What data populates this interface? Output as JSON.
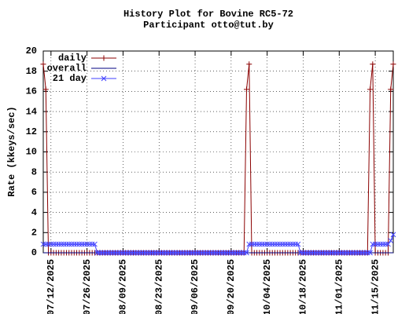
{
  "chart_data": {
    "type": "line",
    "title": "History Plot for Bovine RC5-72",
    "subtitle": "Participant otto@tut.by",
    "y_label": "Rate (kkeys/sec)",
    "x": [
      "2025-07-09",
      "2025-07-10",
      "2025-07-11",
      "2025-07-12",
      "2025-07-13",
      "2025-07-14",
      "2025-07-15",
      "2025-07-16",
      "2025-07-17",
      "2025-07-18",
      "2025-07-19",
      "2025-07-20",
      "2025-07-21",
      "2025-07-22",
      "2025-07-23",
      "2025-07-24",
      "2025-07-25",
      "2025-07-26",
      "2025-07-27",
      "2025-07-28",
      "2025-07-29",
      "2025-07-30",
      "2025-07-31",
      "2025-08-01",
      "2025-08-02",
      "2025-08-03",
      "2025-08-04",
      "2025-08-05",
      "2025-08-06",
      "2025-08-07",
      "2025-08-08",
      "2025-08-09",
      "2025-08-10",
      "2025-08-11",
      "2025-08-12",
      "2025-08-13",
      "2025-08-14",
      "2025-08-15",
      "2025-08-16",
      "2025-08-17",
      "2025-08-18",
      "2025-08-19",
      "2025-08-20",
      "2025-08-21",
      "2025-08-22",
      "2025-08-23",
      "2025-08-24",
      "2025-08-25",
      "2025-08-26",
      "2025-08-27",
      "2025-08-28",
      "2025-08-29",
      "2025-08-30",
      "2025-08-31",
      "2025-09-01",
      "2025-09-02",
      "2025-09-03",
      "2025-09-04",
      "2025-09-05",
      "2025-09-06",
      "2025-09-07",
      "2025-09-08",
      "2025-09-09",
      "2025-09-10",
      "2025-09-11",
      "2025-09-12",
      "2025-09-13",
      "2025-09-14",
      "2025-09-15",
      "2025-09-16",
      "2025-09-17",
      "2025-09-18",
      "2025-09-19",
      "2025-09-20",
      "2025-09-21",
      "2025-09-22",
      "2025-09-23",
      "2025-09-24",
      "2025-09-25",
      "2025-09-26",
      "2025-09-27",
      "2025-09-28",
      "2025-09-29",
      "2025-09-30",
      "2025-10-01",
      "2025-10-02",
      "2025-10-03",
      "2025-10-04",
      "2025-10-05",
      "2025-10-06",
      "2025-10-07",
      "2025-10-08",
      "2025-10-09",
      "2025-10-10",
      "2025-10-11",
      "2025-10-12",
      "2025-10-13",
      "2025-10-14",
      "2025-10-15",
      "2025-10-16",
      "2025-10-17",
      "2025-10-18",
      "2025-10-19",
      "2025-10-20",
      "2025-10-21",
      "2025-10-22",
      "2025-10-23",
      "2025-10-24",
      "2025-10-25",
      "2025-10-26",
      "2025-10-27",
      "2025-10-28",
      "2025-10-29",
      "2025-10-30",
      "2025-10-31",
      "2025-11-01",
      "2025-11-02",
      "2025-11-03",
      "2025-11-04",
      "2025-11-05",
      "2025-11-06",
      "2025-11-07",
      "2025-11-08",
      "2025-11-09",
      "2025-11-10",
      "2025-11-11",
      "2025-11-12",
      "2025-11-13",
      "2025-11-14",
      "2025-11-15",
      "2025-11-16",
      "2025-11-17",
      "2025-11-18",
      "2025-11-19",
      "2025-11-20",
      "2025-11-21",
      "2025-11-22"
    ],
    "series": [
      {
        "name": "daily",
        "color": "#8b0000",
        "marker": "plus",
        "values": [
          18.7,
          16.2,
          0,
          0,
          0,
          0,
          0,
          0,
          0,
          0,
          0,
          0,
          0,
          0,
          0,
          0,
          0,
          0,
          0,
          0,
          0,
          0,
          0,
          0,
          0,
          0,
          0,
          0,
          0,
          0,
          0,
          0,
          0,
          0,
          0,
          0,
          0,
          0,
          0,
          0,
          0,
          0,
          0,
          0,
          0,
          0,
          0,
          0,
          0,
          0,
          0,
          0,
          0,
          0,
          0,
          0,
          0,
          0,
          0,
          0,
          0,
          0,
          0,
          0,
          0,
          0,
          0,
          0,
          0,
          0,
          0,
          0,
          0,
          0,
          0,
          0,
          0,
          0,
          0,
          16.2,
          18.7,
          0,
          0,
          0,
          0,
          0,
          0,
          0,
          0,
          0,
          0,
          0,
          0,
          0,
          0,
          0,
          0,
          0,
          0,
          0,
          0,
          0,
          0,
          0,
          0,
          0,
          0,
          0,
          0,
          0,
          0,
          0,
          0,
          0,
          0,
          0,
          0,
          0,
          0,
          0,
          0,
          0,
          0,
          0,
          0,
          0,
          0,
          16.2,
          18.7,
          0,
          0,
          0,
          0,
          0,
          0,
          16.2,
          18.7
        ]
      },
      {
        "name": "overall",
        "color": "#000080",
        "marker": "none",
        "values": [
          0,
          0,
          0,
          0,
          0,
          0,
          0,
          0,
          0,
          0,
          0,
          0,
          0,
          0,
          0,
          0,
          0,
          0,
          0,
          0,
          0,
          0,
          0,
          0,
          0,
          0,
          0,
          0,
          0,
          0,
          0,
          0,
          0,
          0,
          0,
          0,
          0,
          0,
          0,
          0,
          0,
          0,
          0,
          0,
          0,
          0,
          0,
          0,
          0,
          0,
          0,
          0,
          0,
          0,
          0,
          0,
          0,
          0,
          0,
          0,
          0,
          0,
          0,
          0,
          0,
          0,
          0,
          0,
          0,
          0,
          0,
          0,
          0,
          0,
          0,
          0,
          0,
          0,
          0,
          0,
          0,
          0,
          0,
          0,
          0,
          0,
          0,
          0,
          0,
          0,
          0,
          0,
          0,
          0,
          0,
          0,
          0,
          0,
          0,
          0,
          0,
          0,
          0,
          0,
          0,
          0,
          0,
          0,
          0,
          0,
          0,
          0,
          0,
          0,
          0,
          0,
          0,
          0,
          0,
          0,
          0,
          0,
          0,
          0,
          0,
          0,
          0,
          0,
          0,
          0,
          0,
          0,
          0,
          0,
          0,
          0,
          0
        ]
      },
      {
        "name": "21 day",
        "color": "#4040ff",
        "marker": "cross",
        "values": [
          0.85,
          0.85,
          0.85,
          0.85,
          0.85,
          0.85,
          0.85,
          0.85,
          0.85,
          0.85,
          0.85,
          0.85,
          0.85,
          0.85,
          0.85,
          0.85,
          0.85,
          0.85,
          0.85,
          0.85,
          0.85,
          0,
          0,
          0,
          0,
          0,
          0,
          0,
          0,
          0,
          0,
          0,
          0,
          0,
          0,
          0,
          0,
          0,
          0,
          0,
          0,
          0,
          0,
          0,
          0,
          0,
          0,
          0,
          0,
          0,
          0,
          0,
          0,
          0,
          0,
          0,
          0,
          0,
          0,
          0,
          0,
          0,
          0,
          0,
          0,
          0,
          0,
          0,
          0,
          0,
          0,
          0,
          0,
          0,
          0,
          0,
          0,
          0,
          0,
          0,
          0.85,
          0.85,
          0.85,
          0.85,
          0.85,
          0.85,
          0.85,
          0.85,
          0.85,
          0.85,
          0.85,
          0.85,
          0.85,
          0.85,
          0.85,
          0.85,
          0.85,
          0.85,
          0.85,
          0.85,
          0,
          0,
          0,
          0,
          0,
          0,
          0,
          0,
          0,
          0,
          0,
          0,
          0,
          0,
          0,
          0,
          0,
          0,
          0,
          0,
          0,
          0,
          0,
          0,
          0,
          0,
          0,
          0,
          0.85,
          0.85,
          0.85,
          0.85,
          0.85,
          0.85,
          0.85,
          1.2,
          1.8
        ]
      }
    ],
    "xlim": [
      "2025-07-09",
      "2025-11-22"
    ],
    "xticks": [
      {
        "value": "2025-07-12",
        "label": "07/12/2025"
      },
      {
        "value": "2025-07-26",
        "label": "07/26/2025"
      },
      {
        "value": "2025-08-09",
        "label": "08/09/2025"
      },
      {
        "value": "2025-08-23",
        "label": "08/23/2025"
      },
      {
        "value": "2025-09-06",
        "label": "09/06/2025"
      },
      {
        "value": "2025-09-20",
        "label": "09/20/2025"
      },
      {
        "value": "2025-10-04",
        "label": "10/04/2025"
      },
      {
        "value": "2025-10-18",
        "label": "10/18/2025"
      },
      {
        "value": "2025-11-01",
        "label": "11/01/2025"
      },
      {
        "value": "2025-11-15",
        "label": "11/15/2025"
      }
    ],
    "ylim": [
      0,
      20
    ],
    "yticks": [
      0,
      2,
      4,
      6,
      8,
      10,
      12,
      14,
      16,
      18,
      20
    ],
    "grid": true,
    "legend": "top-left"
  }
}
